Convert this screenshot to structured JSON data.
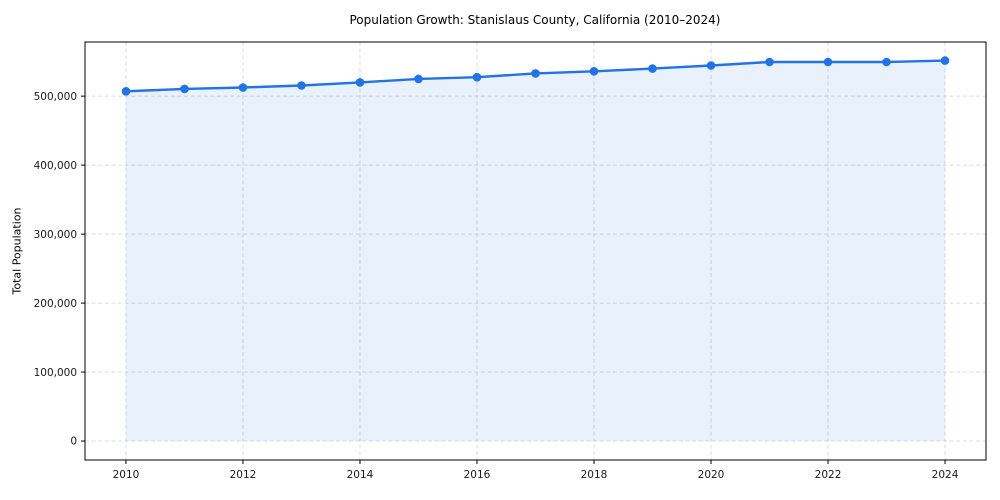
{
  "page": {
    "background_color": "#ffffff"
  },
  "chart_data": {
    "type": "line",
    "title": "Population Growth: Stanislaus County, California (2010–2024)",
    "xlabel": "",
    "ylabel": "Total Population",
    "x": [
      2010,
      2011,
      2012,
      2013,
      2014,
      2015,
      2016,
      2017,
      2018,
      2019,
      2020,
      2021,
      2022,
      2023,
      2024
    ],
    "series": [
      {
        "name": "Total Population",
        "values": [
          507000,
          510500,
          512500,
          515500,
          520000,
          525000,
          527500,
          533000,
          536000,
          540000,
          544500,
          549500,
          549500,
          549500,
          551500
        ]
      }
    ],
    "x_ticks": [
      2010,
      2012,
      2014,
      2016,
      2018,
      2020,
      2022,
      2024
    ],
    "x_tick_labels": [
      "2010",
      "2012",
      "2014",
      "2016",
      "2018",
      "2020",
      "2022",
      "2024"
    ],
    "y_ticks": [
      0,
      100000,
      200000,
      300000,
      400000,
      500000
    ],
    "y_tick_labels": [
      "0",
      "100,000",
      "200,000",
      "300,000",
      "400,000",
      "500,000"
    ],
    "xlim": [
      2009.3,
      2024.7
    ],
    "ylim": [
      -27500,
      578500
    ],
    "grid": true,
    "grid_style": "dashed",
    "legend": "none",
    "fill_to_zero": true,
    "colors": {
      "line": "#2273e6",
      "marker": "#2273e6",
      "fill": "#2273e6",
      "fill_opacity": 0.1,
      "grid": "#d9d9d9",
      "spine": "#000000",
      "text": "#1a1a1a"
    }
  }
}
